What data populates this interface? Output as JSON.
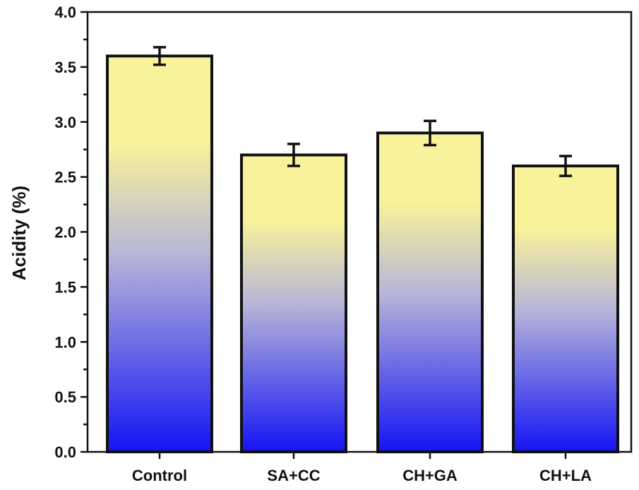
{
  "chart_data": {
    "type": "bar",
    "title": "",
    "xlabel": "",
    "ylabel": "Acidity (%)",
    "categories": [
      "Control",
      "SA+CC",
      "CH+GA",
      "CH+LA"
    ],
    "values": [
      3.6,
      2.7,
      2.9,
      2.6
    ],
    "errors": [
      0.08,
      0.1,
      0.11,
      0.09
    ],
    "ylim": [
      0,
      4.0
    ],
    "yticks": [
      "0.0",
      "0.5",
      "1.0",
      "1.5",
      "2.0",
      "2.5",
      "3.0",
      "3.5",
      "4.0"
    ],
    "grid": false,
    "legend": false,
    "bar_gradient": {
      "top": "#f8f29a",
      "middle": "#b8b6d8",
      "bottom": "#1414f5"
    }
  }
}
